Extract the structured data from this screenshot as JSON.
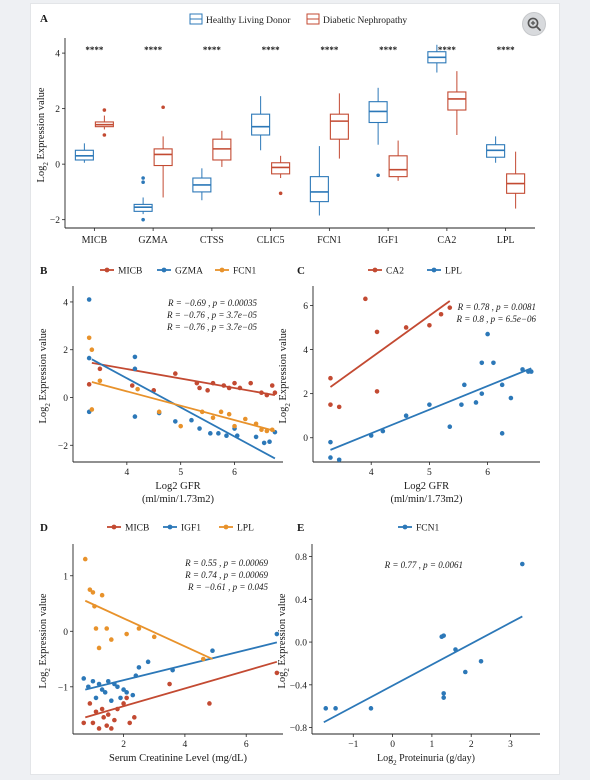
{
  "colors": {
    "blue": "#2c78b8",
    "red": "#c34a32",
    "orange": "#e8922b",
    "bg": "#ffffff",
    "page_bg": "#eef0f3"
  },
  "zoom_icon": "zoom-in-icon",
  "chart_data": [
    {
      "id": "A",
      "panel_label": "A",
      "type": "box",
      "ylabel_main": "Log",
      "ylabel_sub": "2",
      "ylabel_rest": " Expression value",
      "ylim": [
        -2.3,
        4.4
      ],
      "yticks": [
        -2,
        0,
        2,
        4
      ],
      "categories": [
        "MICB",
        "GZMA",
        "CTSS",
        "CLIC5",
        "FCN1",
        "IGF1",
        "CA2",
        "LPL"
      ],
      "significance": [
        "****",
        "****",
        "****",
        "****",
        "****",
        "****",
        "****",
        "****"
      ],
      "series": [
        {
          "name": "Healthy Living Donor",
          "color": "#2c78b8",
          "boxes": [
            {
              "min": 0.05,
              "q1": 0.15,
              "median": 0.3,
              "q3": 0.5,
              "max": 0.75,
              "outliers": []
            },
            {
              "min": -1.8,
              "q1": -1.7,
              "median": -1.55,
              "q3": -1.45,
              "max": -1.2,
              "outliers": [
                -0.5,
                -0.65,
                -2.0
              ]
            },
            {
              "min": -1.3,
              "q1": -1.0,
              "median": -0.75,
              "q3": -0.5,
              "max": -0.15,
              "outliers": []
            },
            {
              "min": 0.5,
              "q1": 1.05,
              "median": 1.35,
              "q3": 1.8,
              "max": 2.45,
              "outliers": []
            },
            {
              "min": -1.85,
              "q1": -1.35,
              "median": -1.0,
              "q3": -0.45,
              "max": 0.65,
              "outliers": []
            },
            {
              "min": 0.7,
              "q1": 1.5,
              "median": 1.9,
              "q3": 2.25,
              "max": 2.75,
              "outliers": [
                -0.4
              ]
            },
            {
              "min": 3.3,
              "q1": 3.65,
              "median": 3.85,
              "q3": 4.05,
              "max": 4.3,
              "outliers": []
            },
            {
              "min": 0.05,
              "q1": 0.25,
              "median": 0.5,
              "q3": 0.7,
              "max": 1.0,
              "outliers": []
            }
          ]
        },
        {
          "name": "Diabetic Nephropathy",
          "color": "#c34a32",
          "boxes": [
            {
              "min": 1.25,
              "q1": 1.35,
              "median": 1.42,
              "q3": 1.52,
              "max": 1.75,
              "outliers": [
                1.95,
                1.05
              ]
            },
            {
              "min": -1.2,
              "q1": -0.05,
              "median": 0.35,
              "q3": 0.55,
              "max": 1.0,
              "outliers": [
                2.05
              ]
            },
            {
              "min": -0.1,
              "q1": 0.15,
              "median": 0.55,
              "q3": 0.9,
              "max": 1.2,
              "outliers": []
            },
            {
              "min": -0.5,
              "q1": -0.35,
              "median": -0.12,
              "q3": 0.05,
              "max": 0.3,
              "outliers": [
                -1.05
              ]
            },
            {
              "min": 0.2,
              "q1": 0.9,
              "median": 1.55,
              "q3": 1.8,
              "max": 2.55,
              "outliers": []
            },
            {
              "min": -0.6,
              "q1": -0.45,
              "median": -0.2,
              "q3": 0.3,
              "max": 0.85,
              "outliers": []
            },
            {
              "min": 1.05,
              "q1": 1.95,
              "median": 2.35,
              "q3": 2.6,
              "max": 3.35,
              "outliers": []
            },
            {
              "min": -1.6,
              "q1": -1.05,
              "median": -0.7,
              "q3": -0.35,
              "max": 0.45,
              "outliers": []
            }
          ]
        }
      ]
    },
    {
      "id": "B",
      "panel_label": "B",
      "type": "scatter",
      "xlabel_line1": "Log2 GFR",
      "xlabel_line2": "(ml/min/1.73m2)",
      "ylabel_main": "Log",
      "ylabel_sub": "2",
      "ylabel_rest": " Expression value",
      "xlim": [
        3.0,
        6.9
      ],
      "ylim": [
        -2.7,
        4.5
      ],
      "xticks": [
        4,
        5,
        6
      ],
      "yticks": [
        -2,
        0,
        2,
        4
      ],
      "series": [
        {
          "name": "MICB",
          "color": "#c34a32",
          "stat": "R = −0.69 , p = 0.00035",
          "points": [
            [
              3.3,
              0.55
            ],
            [
              3.5,
              1.2
            ],
            [
              4.1,
              0.5
            ],
            [
              4.5,
              0.3
            ],
            [
              4.9,
              1.0
            ],
            [
              5.3,
              0.6
            ],
            [
              5.35,
              0.4
            ],
            [
              5.5,
              0.3
            ],
            [
              5.6,
              0.6
            ],
            [
              5.8,
              0.5
            ],
            [
              5.9,
              0.4
            ],
            [
              6.0,
              0.6
            ],
            [
              6.1,
              0.4
            ],
            [
              6.3,
              0.6
            ],
            [
              6.5,
              0.2
            ],
            [
              6.6,
              0.1
            ],
            [
              6.7,
              0.5
            ],
            [
              6.75,
              0.2
            ]
          ],
          "fit": [
            [
              3.35,
              1.45
            ],
            [
              6.75,
              0.1
            ]
          ]
        },
        {
          "name": "GZMA",
          "color": "#2c78b8",
          "stat": "R = −0.76 , p = 3.7e−05",
          "points": [
            [
              3.3,
              4.1
            ],
            [
              3.3,
              1.65
            ],
            [
              3.3,
              -0.6
            ],
            [
              4.15,
              1.7
            ],
            [
              4.15,
              1.2
            ],
            [
              4.15,
              -0.8
            ],
            [
              4.6,
              -0.65
            ],
            [
              4.9,
              -1.0
            ],
            [
              5.2,
              -0.95
            ],
            [
              5.35,
              -1.3
            ],
            [
              5.55,
              -1.5
            ],
            [
              5.7,
              -1.5
            ],
            [
              5.85,
              -1.6
            ],
            [
              6.0,
              -1.3
            ],
            [
              6.05,
              -1.6
            ],
            [
              6.4,
              -1.65
            ],
            [
              6.55,
              -1.9
            ],
            [
              6.65,
              -1.85
            ],
            [
              6.75,
              -1.45
            ]
          ],
          "fit": [
            [
              3.35,
              1.6
            ],
            [
              6.75,
              -2.55
            ]
          ]
        },
        {
          "name": "FCN1",
          "color": "#e8922b",
          "stat": "R = −0.76 , p = 3.7e−05",
          "points": [
            [
              3.3,
              2.5
            ],
            [
              3.35,
              2.0
            ],
            [
              3.35,
              -0.5
            ],
            [
              3.5,
              0.7
            ],
            [
              4.2,
              0.35
            ],
            [
              4.6,
              -0.6
            ],
            [
              5.0,
              -1.2
            ],
            [
              5.4,
              -0.6
            ],
            [
              5.6,
              -0.85
            ],
            [
              5.75,
              -0.6
            ],
            [
              5.9,
              -0.7
            ],
            [
              6.0,
              -1.2
            ],
            [
              6.2,
              -0.9
            ],
            [
              6.4,
              -1.1
            ],
            [
              6.5,
              -1.35
            ],
            [
              6.6,
              -1.4
            ],
            [
              6.7,
              -1.35
            ]
          ],
          "fit": [
            [
              3.35,
              0.65
            ],
            [
              6.75,
              -1.4
            ]
          ]
        }
      ]
    },
    {
      "id": "C",
      "panel_label": "C",
      "type": "scatter",
      "xlabel_line1": "Log2 GFR",
      "xlabel_line2": "(ml/min/1.73m2)",
      "ylabel_main": "Log",
      "ylabel_sub": "2",
      "ylabel_rest": " Expression value",
      "xlim": [
        3.0,
        6.9
      ],
      "ylim": [
        -1.1,
        6.7
      ],
      "xticks": [
        4,
        5,
        6
      ],
      "yticks": [
        0,
        2,
        4,
        6
      ],
      "series": [
        {
          "name": "CA2",
          "color": "#c34a32",
          "stat": "R = 0.78 , p = 0.0081",
          "points": [
            [
              3.3,
              2.7
            ],
            [
              3.3,
              1.5
            ],
            [
              3.45,
              1.4
            ],
            [
              3.9,
              6.3
            ],
            [
              4.1,
              4.8
            ],
            [
              4.1,
              2.1
            ],
            [
              4.6,
              5.0
            ],
            [
              5.0,
              5.1
            ],
            [
              5.2,
              5.6
            ],
            [
              5.35,
              5.9
            ]
          ],
          "fit": [
            [
              3.3,
              2.3
            ],
            [
              5.35,
              6.2
            ]
          ]
        },
        {
          "name": "LPL",
          "color": "#2c78b8",
          "stat": "R = 0.8 , p = 6.5e−06",
          "points": [
            [
              3.3,
              -0.9
            ],
            [
              3.3,
              -0.2
            ],
            [
              3.45,
              -1.0
            ],
            [
              4.0,
              0.1
            ],
            [
              4.2,
              0.3
            ],
            [
              4.6,
              1.0
            ],
            [
              5.0,
              1.5
            ],
            [
              5.35,
              0.5
            ],
            [
              5.55,
              1.5
            ],
            [
              5.6,
              2.4
            ],
            [
              5.8,
              1.6
            ],
            [
              5.9,
              2.0
            ],
            [
              5.9,
              3.4
            ],
            [
              6.0,
              4.7
            ],
            [
              6.1,
              3.4
            ],
            [
              6.25,
              2.4
            ],
            [
              6.25,
              0.2
            ],
            [
              6.4,
              1.8
            ],
            [
              6.6,
              3.1
            ],
            [
              6.7,
              3.0
            ],
            [
              6.75,
              3.0
            ]
          ],
          "fit": [
            [
              3.3,
              -0.55
            ],
            [
              6.75,
              3.15
            ]
          ]
        }
      ]
    },
    {
      "id": "D",
      "panel_label": "D",
      "type": "scatter",
      "xlabel_line1": "Serum Creatinine Level (mg/dL)",
      "xlabel_line2": "",
      "ylabel_main": "Log",
      "ylabel_sub": "2",
      "ylabel_rest": " Expression value",
      "xlim": [
        0.35,
        7.2
      ],
      "ylim": [
        -1.85,
        1.5
      ],
      "xticks": [
        2,
        4,
        6
      ],
      "yticks": [
        -1,
        0,
        1
      ],
      "series": [
        {
          "name": "MICB",
          "color": "#c34a32",
          "stat": "R = 0.55 , p = 0.00069",
          "points": [
            [
              0.7,
              -1.65
            ],
            [
              0.9,
              -1.3
            ],
            [
              1.0,
              -1.65
            ],
            [
              1.1,
              -1.45
            ],
            [
              1.2,
              -1.75
            ],
            [
              1.3,
              -1.4
            ],
            [
              1.35,
              -1.55
            ],
            [
              1.45,
              -1.7
            ],
            [
              1.5,
              -1.5
            ],
            [
              1.6,
              -1.75
            ],
            [
              1.7,
              -1.6
            ],
            [
              1.8,
              -1.4
            ],
            [
              2.0,
              -1.3
            ],
            [
              2.1,
              -1.2
            ],
            [
              2.2,
              -1.65
            ],
            [
              2.35,
              -1.55
            ],
            [
              3.5,
              -0.95
            ],
            [
              4.8,
              -1.3
            ],
            [
              7.0,
              -0.75
            ]
          ],
          "fit": [
            [
              0.75,
              -1.55
            ],
            [
              7.0,
              -0.55
            ]
          ]
        },
        {
          "name": "IGF1",
          "color": "#2c78b8",
          "stat": "R = 0.74 , p = 0.00069",
          "points": [
            [
              0.7,
              -0.85
            ],
            [
              0.85,
              -1.0
            ],
            [
              1.0,
              -0.9
            ],
            [
              1.1,
              -1.2
            ],
            [
              1.2,
              -0.95
            ],
            [
              1.3,
              -1.05
            ],
            [
              1.4,
              -1.1
            ],
            [
              1.5,
              -0.9
            ],
            [
              1.6,
              -1.25
            ],
            [
              1.7,
              -0.95
            ],
            [
              1.8,
              -1.0
            ],
            [
              1.9,
              -1.2
            ],
            [
              2.0,
              -1.05
            ],
            [
              2.1,
              -1.1
            ],
            [
              2.3,
              -1.15
            ],
            [
              2.4,
              -0.8
            ],
            [
              2.5,
              -0.65
            ],
            [
              2.8,
              -0.55
            ],
            [
              3.6,
              -0.7
            ],
            [
              4.9,
              -0.35
            ],
            [
              7.0,
              -0.05
            ]
          ],
          "fit": [
            [
              0.75,
              -1.05
            ],
            [
              7.0,
              -0.2
            ]
          ]
        },
        {
          "name": "LPL",
          "color": "#e8922b",
          "stat": "R = −0.61 , p = 0.045",
          "points": [
            [
              0.75,
              1.3
            ],
            [
              0.9,
              0.75
            ],
            [
              1.0,
              0.7
            ],
            [
              1.05,
              0.45
            ],
            [
              1.1,
              0.05
            ],
            [
              1.2,
              -0.3
            ],
            [
              1.3,
              0.65
            ],
            [
              1.45,
              0.05
            ],
            [
              1.6,
              -0.15
            ],
            [
              2.1,
              -0.05
            ],
            [
              2.5,
              0.05
            ],
            [
              3.0,
              -0.1
            ],
            [
              4.6,
              -0.5
            ]
          ],
          "fit": [
            [
              0.75,
              0.55
            ],
            [
              4.9,
              -0.5
            ]
          ]
        }
      ]
    },
    {
      "id": "E",
      "panel_label": "E",
      "type": "scatter",
      "xlabel_line1": "Log",
      "xlabel_sub": "2",
      "xlabel_rest": " Proteinuria (g/day)",
      "ylabel_main": "Log",
      "ylabel_sub": "2",
      "ylabel_rest": " Expression value",
      "xlim": [
        -2.05,
        3.75
      ],
      "ylim": [
        -0.86,
        0.88
      ],
      "xticks": [
        -1,
        0,
        1,
        2,
        3
      ],
      "yticks": [
        -0.8,
        -0.4,
        0.0,
        0.4,
        0.8
      ],
      "ytick_labels": [
        "−0.8",
        "−0.4",
        "0.0",
        "0.4",
        "0.8"
      ],
      "series": [
        {
          "name": "FCN1",
          "color": "#2c78b8",
          "stat": "R = 0.77 , p = 0.0061",
          "points": [
            [
              -1.7,
              -0.62
            ],
            [
              -1.45,
              -0.62
            ],
            [
              -0.55,
              -0.62
            ],
            [
              1.25,
              0.05
            ],
            [
              1.3,
              0.06
            ],
            [
              1.3,
              -0.48
            ],
            [
              1.3,
              -0.52
            ],
            [
              1.6,
              -0.07
            ],
            [
              1.85,
              -0.28
            ],
            [
              2.25,
              -0.18
            ],
            [
              3.3,
              0.73
            ]
          ],
          "fit": [
            [
              -1.75,
              -0.75
            ],
            [
              3.3,
              0.24
            ]
          ]
        }
      ]
    }
  ]
}
